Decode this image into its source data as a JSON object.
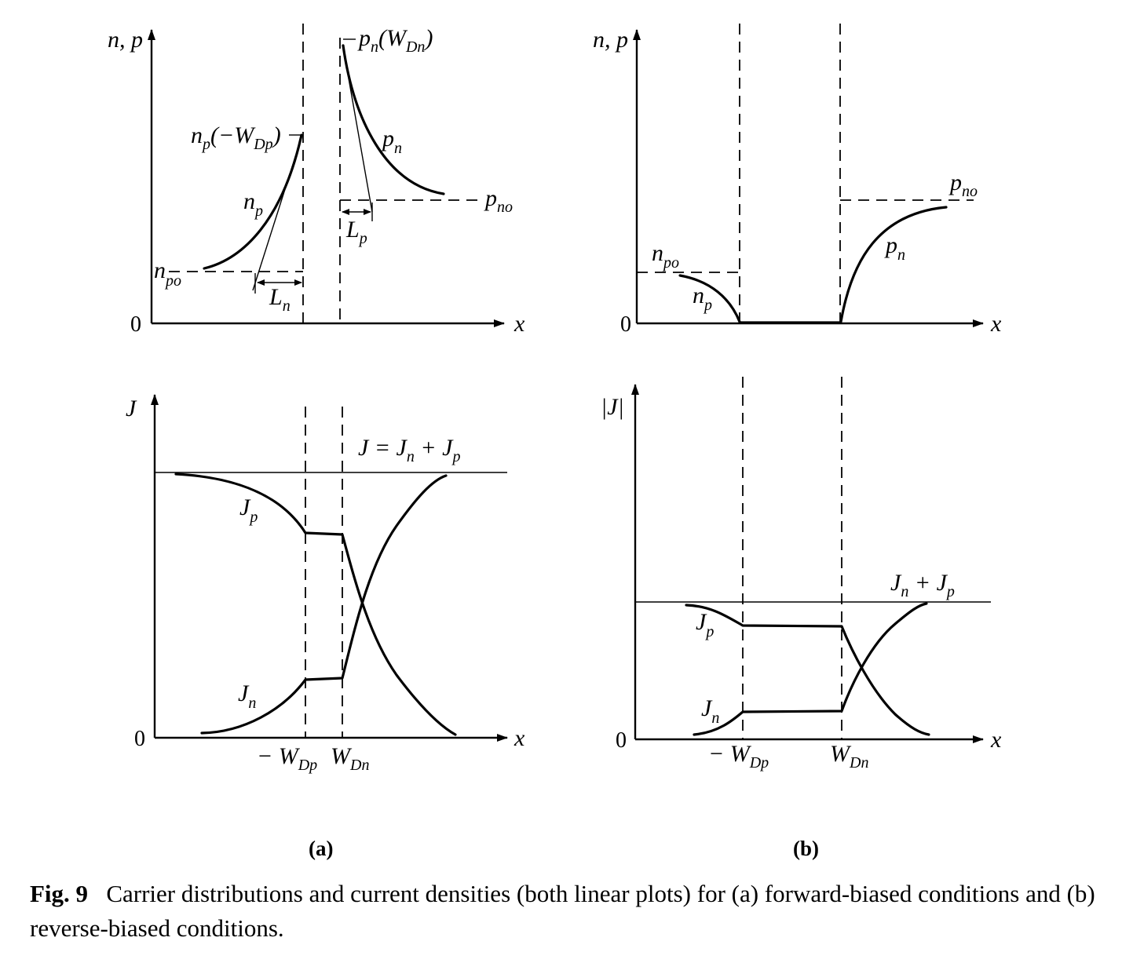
{
  "panels": {
    "a": {
      "label": "(a)",
      "top": {
        "y_axis": "n, p",
        "x_axis": "x",
        "origin": "0",
        "np_edge": {
          "base": "n",
          "sub": "p",
          "arg": "(−W",
          "arg_sub": "Dp",
          "close": ")"
        },
        "pn_edge": {
          "base": "p",
          "sub": "n",
          "arg": "(W",
          "arg_sub": "Dn",
          "close": ")"
        },
        "np": {
          "base": "n",
          "sub": "p"
        },
        "pn": {
          "base": "p",
          "sub": "n"
        },
        "npo": {
          "base": "n",
          "sub": "po"
        },
        "pno": {
          "base": "p",
          "sub": "no"
        },
        "Ln": {
          "base": "L",
          "sub": "n"
        },
        "Lp": {
          "base": "L",
          "sub": "p"
        }
      },
      "bottom": {
        "y_axis": "J",
        "x_axis": "x",
        "origin": "0",
        "total": {
          "text1": "J = J",
          "sub1": "n",
          "text2": " + J",
          "sub2": "p"
        },
        "Jp": {
          "base": "J",
          "sub": "p"
        },
        "Jn": {
          "base": "J",
          "sub": "n"
        },
        "WDp": {
          "base": "− W",
          "sub": "Dp"
        },
        "WDn": {
          "base": "W",
          "sub": "Dn"
        }
      }
    },
    "b": {
      "label": "(b)",
      "top": {
        "y_axis": "n, p",
        "x_axis": "x",
        "origin": "0",
        "npo": {
          "base": "n",
          "sub": "po"
        },
        "pno": {
          "base": "p",
          "sub": "no"
        },
        "np": {
          "base": "n",
          "sub": "p"
        },
        "pn": {
          "base": "p",
          "sub": "n"
        }
      },
      "bottom": {
        "y_axis": "|J|",
        "x_axis": "x",
        "origin": "0",
        "total": {
          "text1": "J",
          "sub1": "n",
          "text2": " + J",
          "sub2": "p"
        },
        "Jp": {
          "base": "J",
          "sub": "p"
        },
        "Jn": {
          "base": "J",
          "sub": "n"
        },
        "WDp": {
          "base": "− W",
          "sub": "Dp"
        },
        "WDn": {
          "base": "W",
          "sub": "Dn"
        }
      }
    }
  },
  "caption": {
    "number": "Fig. 9",
    "text": "Carrier distributions and current densities (both linear plots) for (a) forward-biased conditions and (b) reverse-biased conditions."
  }
}
